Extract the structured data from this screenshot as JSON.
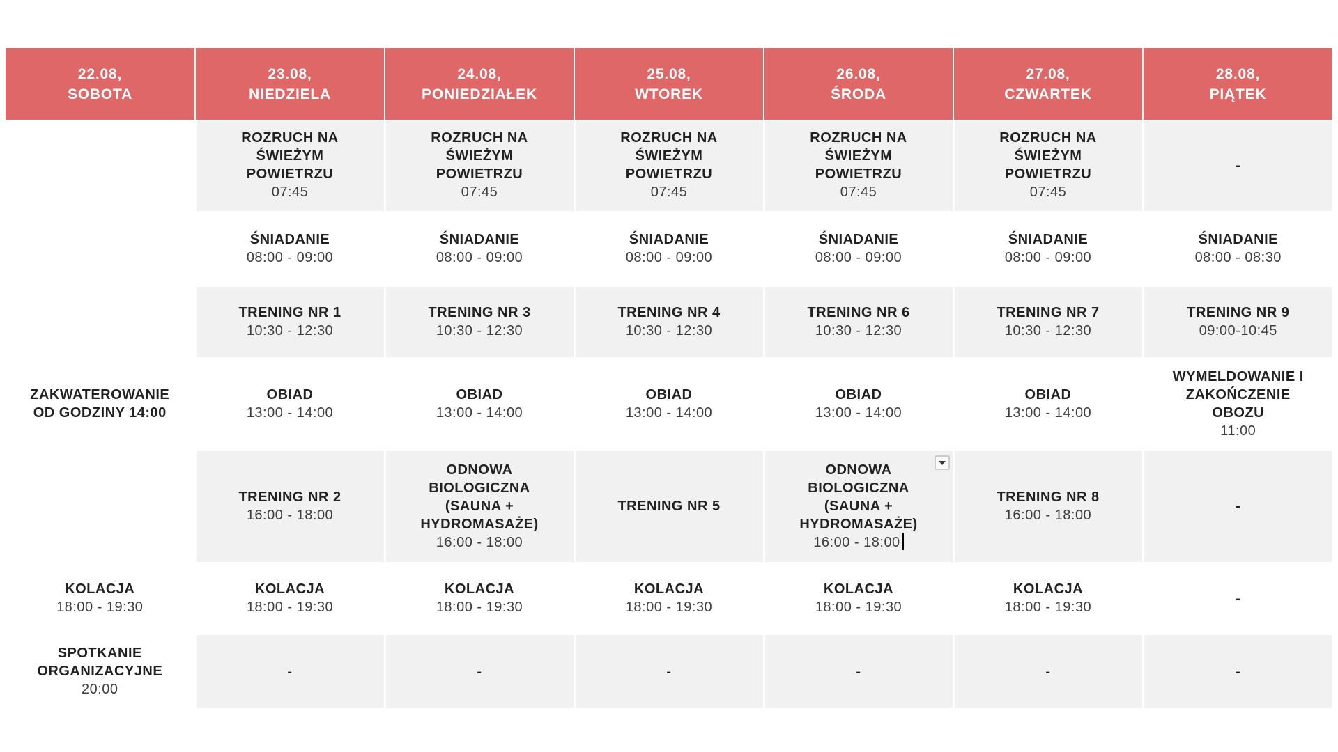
{
  "theme": {
    "header_bg": "#df6767",
    "header_text": "#ffffff",
    "alt_row_bg": "#f1f1f1",
    "title_color": "#212121",
    "time_color": "#3e3e3e",
    "page_bg": "#ffffff"
  },
  "icons": {
    "cell_dropdown": "chevron-down",
    "text_cursor": "caret"
  },
  "columns": [
    {
      "date": "22.08,",
      "day": "SOBOTA"
    },
    {
      "date": "23.08,",
      "day": "NIEDZIELA"
    },
    {
      "date": "24.08,",
      "day": "PONIEDZIAŁEK"
    },
    {
      "date": "25.08,",
      "day": "WTOREK"
    },
    {
      "date": "26.08,",
      "day": "ŚRODA"
    },
    {
      "date": "27.08,",
      "day": "CZWARTEK"
    },
    {
      "date": "28.08,",
      "day": "PIĄTEK"
    }
  ],
  "rows": [
    {
      "alt": true,
      "cells": [
        {},
        {
          "title": "ROZRUCH NA\nŚWIEŻYM\nPOWIETRZU",
          "time": "07:45"
        },
        {
          "title": "ROZRUCH NA\nŚWIEŻYM\nPOWIETRZU",
          "time": "07:45"
        },
        {
          "title": "ROZRUCH NA\nŚWIEŻYM\nPOWIETRZU",
          "time": "07:45"
        },
        {
          "title": "ROZRUCH NA\nŚWIEŻYM\nPOWIETRZU",
          "time": "07:45"
        },
        {
          "title": "ROZRUCH NA\nŚWIEŻYM\nPOWIETRZU",
          "time": "07:45"
        },
        {
          "title": "-"
        }
      ]
    },
    {
      "alt": false,
      "cells": [
        {},
        {
          "title": "ŚNIADANIE",
          "time": "08:00 - 09:00"
        },
        {
          "title": "ŚNIADANIE",
          "time": "08:00 - 09:00"
        },
        {
          "title": "ŚNIADANIE",
          "time": "08:00 - 09:00"
        },
        {
          "title": "ŚNIADANIE",
          "time": "08:00 - 09:00"
        },
        {
          "title": "ŚNIADANIE",
          "time": "08:00 - 09:00"
        },
        {
          "title": "ŚNIADANIE",
          "time": "08:00 - 08:30"
        }
      ]
    },
    {
      "alt": true,
      "cells": [
        {},
        {
          "title": "TRENING NR 1",
          "time": "10:30 - 12:30"
        },
        {
          "title": "TRENING NR 3",
          "time": "10:30 - 12:30"
        },
        {
          "title": "TRENING NR 4",
          "time": "10:30 - 12:30"
        },
        {
          "title": "TRENING NR 6",
          "time": "10:30 - 12:30"
        },
        {
          "title": "TRENING NR 7",
          "time": "10:30 - 12:30"
        },
        {
          "title": "TRENING NR 9",
          "time": "09:00-10:45"
        }
      ]
    },
    {
      "alt": false,
      "cells": [
        {
          "title": "ZAKWATEROWANIE\nOD GODZINY 14:00"
        },
        {
          "title": "OBIAD",
          "time": "13:00 - 14:00"
        },
        {
          "title": "OBIAD",
          "time": "13:00 - 14:00"
        },
        {
          "title": "OBIAD",
          "time": "13:00 - 14:00"
        },
        {
          "title": "OBIAD",
          "time": "13:00 - 14:00"
        },
        {
          "title": "OBIAD",
          "time": "13:00 - 14:00"
        },
        {
          "title": "WYMELDOWANIE I\nZAKOŃCZENIE\nOBOZU",
          "time": "11:00"
        }
      ]
    },
    {
      "alt": true,
      "cells": [
        {},
        {
          "title": "TRENING NR 2",
          "time": "16:00 - 18:00"
        },
        {
          "title": "ODNOWA\nBIOLOGICZNA\n(SAUNA +\nHYDROMASAŻE)",
          "time": "16:00 - 18:00"
        },
        {
          "title": "TRENING NR 5"
        },
        {
          "title": "ODNOWA\nBIOLOGICZNA\n(SAUNA +\nHYDROMASAŻE)",
          "time": "16:00 - 18:00",
          "caret": true,
          "dropdown": true
        },
        {
          "title": "TRENING NR 8",
          "time": "16:00 - 18:00"
        },
        {
          "title": "-"
        }
      ]
    },
    {
      "alt": false,
      "cells": [
        {
          "title": "KOLACJA",
          "time": "18:00 - 19:30"
        },
        {
          "title": "KOLACJA",
          "time": "18:00 - 19:30"
        },
        {
          "title": "KOLACJA",
          "time": "18:00 - 19:30"
        },
        {
          "title": "KOLACJA",
          "time": "18:00 - 19:30"
        },
        {
          "title": "KOLACJA",
          "time": "18:00 - 19:30"
        },
        {
          "title": "KOLACJA",
          "time": "18:00 - 19:30"
        },
        {
          "title": "-"
        }
      ]
    },
    {
      "alt": true,
      "cells": [
        {
          "title": "SPOTKANIE\nORGANIZACYJNE",
          "time": "20:00"
        },
        {
          "title": "-"
        },
        {
          "title": "-"
        },
        {
          "title": "-"
        },
        {
          "title": "-"
        },
        {
          "title": "-"
        },
        {
          "title": "-"
        }
      ]
    }
  ]
}
